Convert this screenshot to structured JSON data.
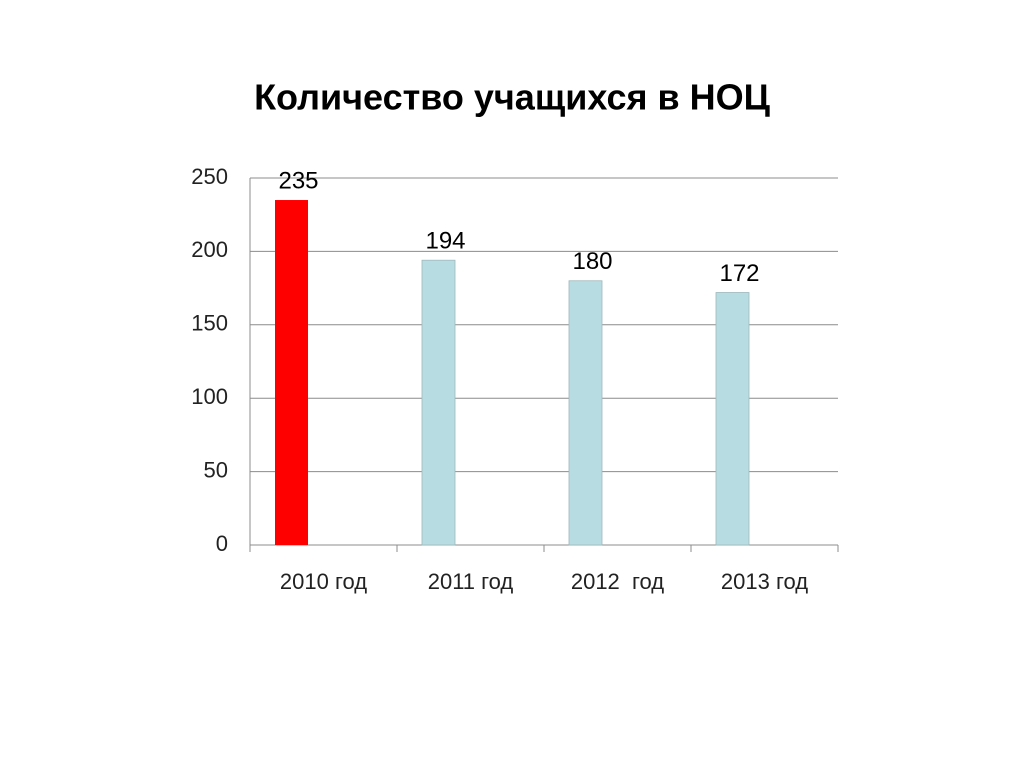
{
  "chart_data": {
    "type": "bar",
    "title": "Количество учащихся в НОЦ",
    "categories": [
      "2010 год",
      "2011 год",
      "2012  год",
      "2013 год"
    ],
    "values": [
      235,
      194,
      180,
      172
    ],
    "colors": [
      "#ff0000",
      "#b7dde2",
      "#b7dde2",
      "#b7dde2"
    ],
    "ylim": [
      0,
      250
    ],
    "yticks": [
      0,
      50,
      100,
      150,
      200,
      250
    ],
    "grid": true
  }
}
